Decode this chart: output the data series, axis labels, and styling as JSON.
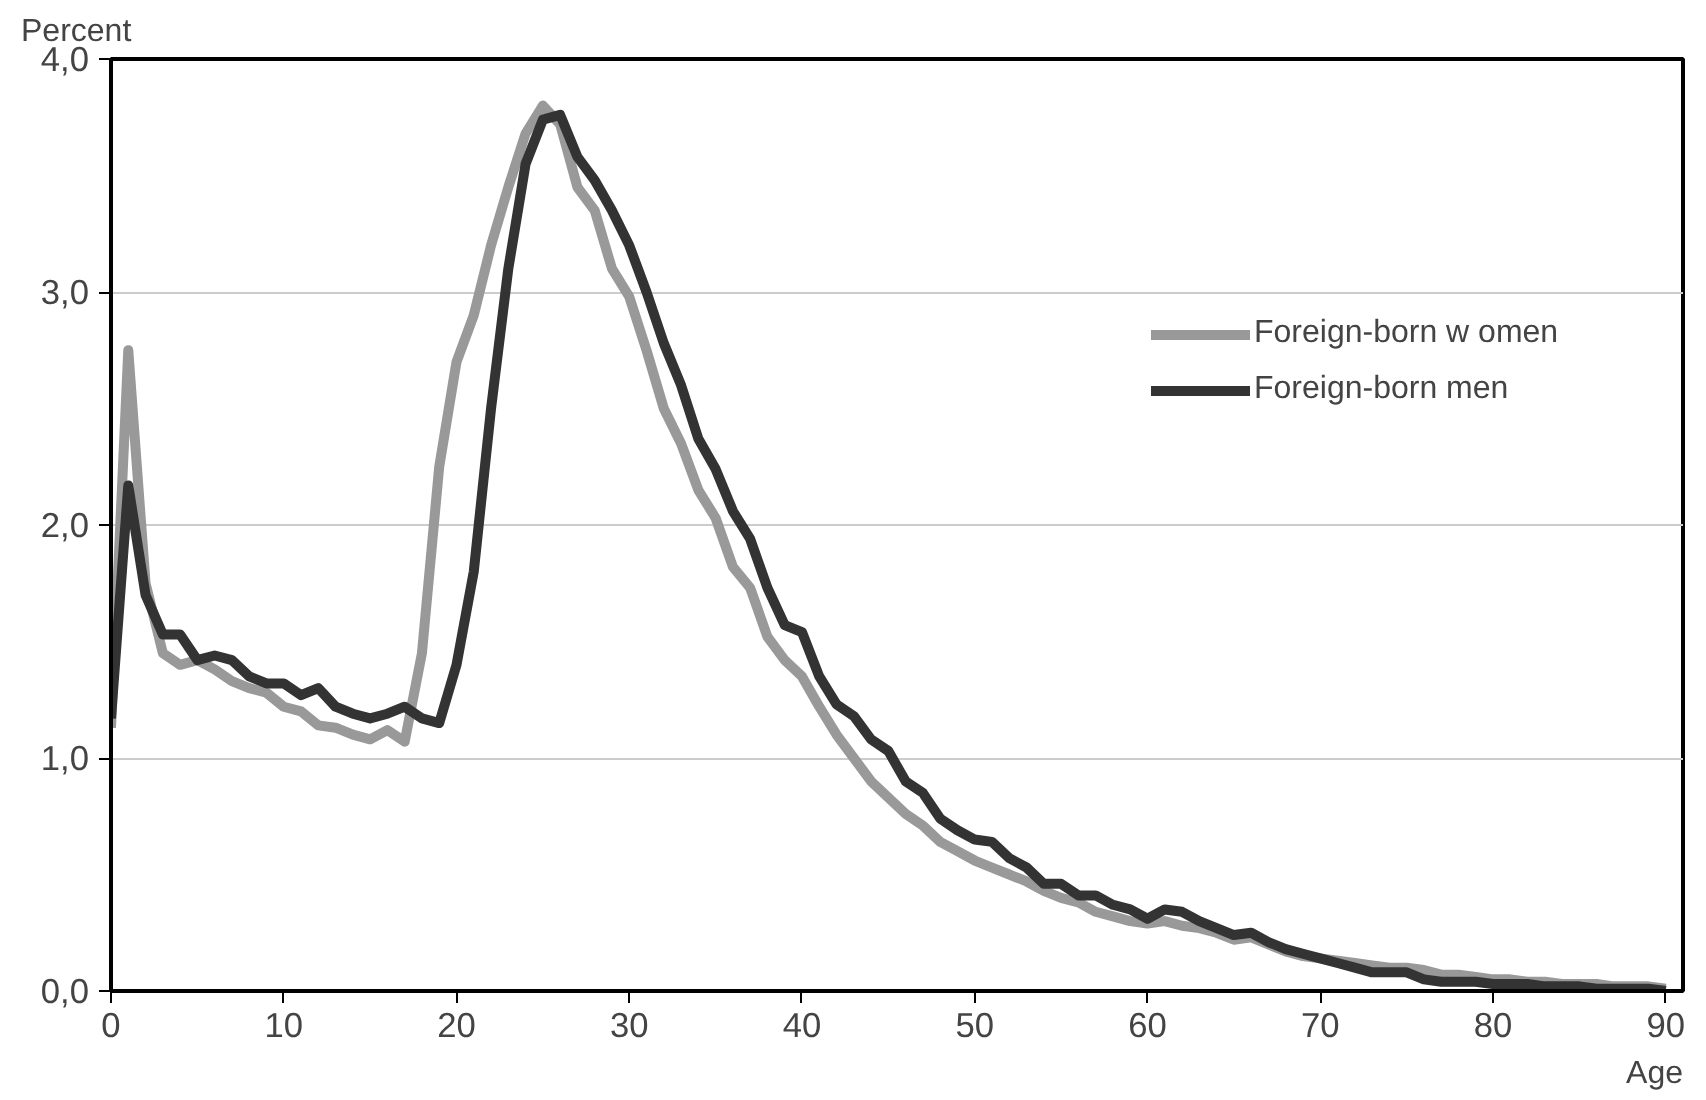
{
  "chart_data": {
    "type": "line",
    "ylabel": "Percent",
    "xlabel": "Age",
    "x": [
      0,
      1,
      2,
      3,
      4,
      5,
      6,
      7,
      8,
      9,
      10,
      11,
      12,
      13,
      14,
      15,
      16,
      17,
      18,
      19,
      20,
      21,
      22,
      23,
      24,
      25,
      26,
      27,
      28,
      29,
      30,
      31,
      32,
      33,
      34,
      35,
      36,
      37,
      38,
      39,
      40,
      41,
      42,
      43,
      44,
      45,
      46,
      47,
      48,
      49,
      50,
      51,
      52,
      53,
      54,
      55,
      56,
      57,
      58,
      59,
      60,
      61,
      62,
      63,
      64,
      65,
      66,
      67,
      68,
      69,
      70,
      71,
      72,
      73,
      74,
      75,
      76,
      77,
      78,
      79,
      80,
      81,
      82,
      83,
      84,
      85,
      86,
      87,
      88,
      89,
      90
    ],
    "series": [
      {
        "name": "Foreign-born w omen",
        "color": "#999999",
        "values": [
          1.13,
          2.75,
          1.75,
          1.45,
          1.4,
          1.42,
          1.38,
          1.33,
          1.3,
          1.28,
          1.22,
          1.2,
          1.14,
          1.13,
          1.1,
          1.08,
          1.12,
          1.07,
          1.45,
          2.25,
          2.7,
          2.9,
          3.2,
          3.45,
          3.68,
          3.8,
          3.72,
          3.45,
          3.35,
          3.1,
          2.98,
          2.75,
          2.5,
          2.35,
          2.15,
          2.03,
          1.82,
          1.73,
          1.52,
          1.42,
          1.35,
          1.22,
          1.1,
          1.0,
          0.9,
          0.83,
          0.76,
          0.71,
          0.64,
          0.6,
          0.56,
          0.53,
          0.5,
          0.47,
          0.43,
          0.4,
          0.38,
          0.34,
          0.32,
          0.3,
          0.29,
          0.3,
          0.28,
          0.27,
          0.25,
          0.22,
          0.23,
          0.2,
          0.17,
          0.15,
          0.14,
          0.13,
          0.12,
          0.11,
          0.1,
          0.1,
          0.09,
          0.07,
          0.07,
          0.06,
          0.05,
          0.05,
          0.04,
          0.04,
          0.03,
          0.03,
          0.03,
          0.02,
          0.02,
          0.02,
          0.01
        ]
      },
      {
        "name": "Foreign-born men",
        "color": "#333333",
        "values": [
          1.17,
          2.17,
          1.7,
          1.53,
          1.53,
          1.42,
          1.44,
          1.42,
          1.35,
          1.32,
          1.32,
          1.27,
          1.3,
          1.22,
          1.19,
          1.17,
          1.19,
          1.22,
          1.17,
          1.15,
          1.4,
          1.8,
          2.5,
          3.1,
          3.55,
          3.74,
          3.76,
          3.58,
          3.48,
          3.35,
          3.2,
          3.0,
          2.78,
          2.6,
          2.37,
          2.24,
          2.06,
          1.94,
          1.73,
          1.57,
          1.54,
          1.35,
          1.23,
          1.18,
          1.08,
          1.03,
          0.9,
          0.85,
          0.74,
          0.69,
          0.65,
          0.64,
          0.57,
          0.53,
          0.46,
          0.46,
          0.41,
          0.41,
          0.37,
          0.35,
          0.31,
          0.35,
          0.34,
          0.3,
          0.27,
          0.24,
          0.25,
          0.21,
          0.18,
          0.16,
          0.14,
          0.12,
          0.1,
          0.08,
          0.08,
          0.08,
          0.05,
          0.04,
          0.04,
          0.04,
          0.03,
          0.03,
          0.03,
          0.02,
          0.02,
          0.02,
          0.01,
          0.01,
          0.01,
          0.01,
          0.0
        ]
      }
    ],
    "xlim": [
      0,
      91
    ],
    "xticks": [
      0,
      10,
      20,
      30,
      40,
      50,
      60,
      70,
      80,
      90
    ],
    "ylim": [
      0,
      4
    ],
    "yticks": [
      {
        "value": 0,
        "label": "0,0"
      },
      {
        "value": 1,
        "label": "1,0"
      },
      {
        "value": 2,
        "label": "2,0"
      },
      {
        "value": 3,
        "label": "3,0"
      },
      {
        "value": 4,
        "label": "4,0"
      }
    ],
    "grid": "y",
    "legend": "right",
    "marker": "none",
    "line_style": "solid"
  }
}
